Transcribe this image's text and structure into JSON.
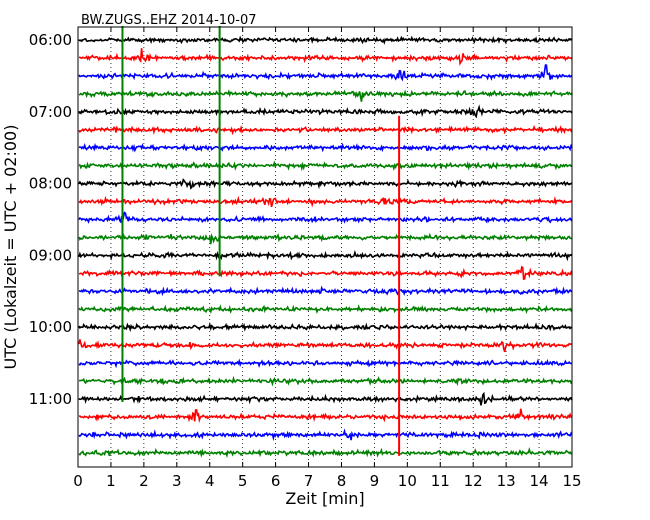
{
  "chart_data": {
    "type": "line",
    "title": "BW.ZUGS..EHZ 2014-10-07",
    "xlabel": "Zeit  [min]",
    "ylabel": "UTC (Lokalzeit = UTC + 02:00)",
    "xlim": [
      0,
      15
    ],
    "x_ticks": [
      "0",
      "1",
      "2",
      "3",
      "4",
      "5",
      "6",
      "7",
      "8",
      "9",
      "10",
      "11",
      "12",
      "13",
      "14",
      "15"
    ],
    "y_ticks": [
      {
        "label": "06:00",
        "trace": 0
      },
      {
        "label": "07:00",
        "trace": 4
      },
      {
        "label": "08:00",
        "trace": 8
      },
      {
        "label": "09:00",
        "trace": 12
      },
      {
        "label": "10:00",
        "trace": 16
      },
      {
        "label": "11:00",
        "trace": 20
      }
    ],
    "grid": "x-dotted",
    "trace_minutes": 15,
    "trace_colors": [
      "#000000",
      "#ff0000",
      "#0000ff",
      "#008000"
    ],
    "traces": [
      {
        "start": "06:00",
        "color": "#000000"
      },
      {
        "start": "06:15",
        "color": "#ff0000"
      },
      {
        "start": "06:30",
        "color": "#0000ff"
      },
      {
        "start": "06:45",
        "color": "#008000"
      },
      {
        "start": "07:00",
        "color": "#000000"
      },
      {
        "start": "07:15",
        "color": "#ff0000"
      },
      {
        "start": "07:30",
        "color": "#0000ff"
      },
      {
        "start": "07:45",
        "color": "#008000"
      },
      {
        "start": "08:00",
        "color": "#000000"
      },
      {
        "start": "08:15",
        "color": "#ff0000"
      },
      {
        "start": "08:30",
        "color": "#0000ff"
      },
      {
        "start": "08:45",
        "color": "#008000"
      },
      {
        "start": "09:00",
        "color": "#000000"
      },
      {
        "start": "09:15",
        "color": "#ff0000"
      },
      {
        "start": "09:30",
        "color": "#0000ff"
      },
      {
        "start": "09:45",
        "color": "#008000"
      },
      {
        "start": "10:00",
        "color": "#000000"
      },
      {
        "start": "10:15",
        "color": "#ff0000"
      },
      {
        "start": "10:30",
        "color": "#0000ff"
      },
      {
        "start": "10:45",
        "color": "#008000"
      },
      {
        "start": "11:00",
        "color": "#000000"
      },
      {
        "start": "11:15",
        "color": "#ff0000"
      },
      {
        "start": "11:30",
        "color": "#0000ff"
      },
      {
        "start": "11:45",
        "color": "#008000"
      }
    ],
    "markers": [
      {
        "minute": 1.35,
        "from_trace": 0,
        "to_trace": 20,
        "color": "#008000"
      },
      {
        "minute": 4.3,
        "from_trace": 0,
        "to_trace": 13,
        "color": "#008000"
      },
      {
        "minute": 9.75,
        "from_trace": 5,
        "to_trace": 23,
        "color": "#ff0000"
      }
    ],
    "events": [
      {
        "trace": 1,
        "minute": 1.9
      },
      {
        "trace": 1,
        "minute": 11.6
      },
      {
        "trace": 2,
        "minute": 9.8
      },
      {
        "trace": 2,
        "minute": 14.2
      },
      {
        "trace": 3,
        "minute": 8.6
      },
      {
        "trace": 4,
        "minute": 12.2
      },
      {
        "trace": 8,
        "minute": 3.3
      },
      {
        "trace": 9,
        "minute": 5.8
      },
      {
        "trace": 9,
        "minute": 9.3
      },
      {
        "trace": 10,
        "minute": 1.4
      },
      {
        "trace": 11,
        "minute": 4.1
      },
      {
        "trace": 13,
        "minute": 13.5
      },
      {
        "trace": 17,
        "minute": 0.1
      },
      {
        "trace": 17,
        "minute": 12.9
      },
      {
        "trace": 20,
        "minute": 12.3
      },
      {
        "trace": 21,
        "minute": 3.6
      },
      {
        "trace": 21,
        "minute": 13.4
      },
      {
        "trace": 22,
        "minute": 8.3
      }
    ]
  }
}
